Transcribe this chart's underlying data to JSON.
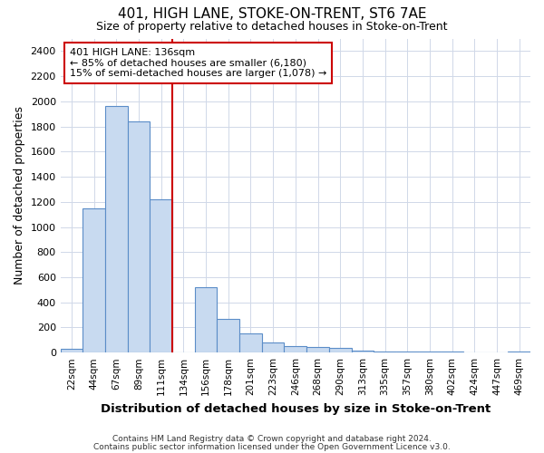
{
  "title": "401, HIGH LANE, STOKE-ON-TRENT, ST6 7AE",
  "subtitle": "Size of property relative to detached houses in Stoke-on-Trent",
  "xlabel": "Distribution of detached houses by size in Stoke-on-Trent",
  "ylabel": "Number of detached properties",
  "bin_labels": [
    "22sqm",
    "44sqm",
    "67sqm",
    "89sqm",
    "111sqm",
    "134sqm",
    "156sqm",
    "178sqm",
    "201sqm",
    "223sqm",
    "246sqm",
    "268sqm",
    "290sqm",
    "313sqm",
    "335sqm",
    "357sqm",
    "380sqm",
    "402sqm",
    "424sqm",
    "447sqm",
    "469sqm"
  ],
  "bar_values": [
    30,
    1150,
    1960,
    1840,
    1220,
    0,
    520,
    265,
    150,
    80,
    55,
    45,
    40,
    15,
    10,
    8,
    5,
    5,
    3,
    2,
    10
  ],
  "bar_color": "#c8daf0",
  "bar_edge_color": "#5b8dc8",
  "vline_index": 5,
  "annotation_title": "401 HIGH LANE: 136sqm",
  "annotation_line1": "← 85% of detached houses are smaller (6,180)",
  "annotation_line2": "15% of semi-detached houses are larger (1,078) →",
  "annotation_box_color": "#ffffff",
  "annotation_box_edge": "#cc0000",
  "vline_color": "#cc0000",
  "ylim": [
    0,
    2500
  ],
  "yticks": [
    0,
    200,
    400,
    600,
    800,
    1000,
    1200,
    1400,
    1600,
    1800,
    2000,
    2200,
    2400
  ],
  "footer1": "Contains HM Land Registry data © Crown copyright and database right 2024.",
  "footer2": "Contains public sector information licensed under the Open Government Licence v3.0.",
  "bg_color": "#ffffff",
  "plot_bg_color": "#ffffff"
}
